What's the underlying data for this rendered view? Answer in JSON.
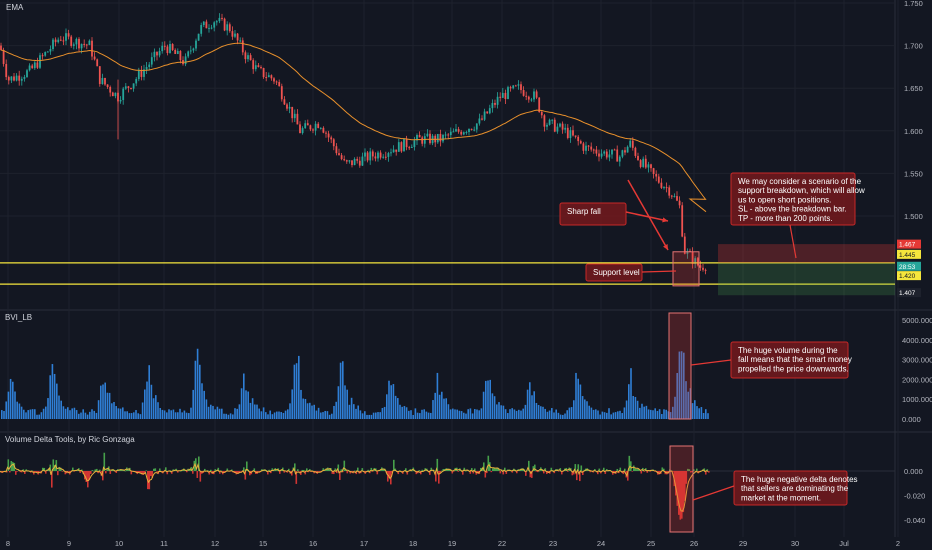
{
  "panels": {
    "price_title": "EMA",
    "volume_title": "BVI_LB",
    "delta_title": "Volume Delta Tools, by Ric Gonzaga"
  },
  "chart_data": [
    {
      "type": "candlestick",
      "title": "EMA",
      "y_ticks": [
        "1.750",
        "1.700",
        "1.650",
        "1.600",
        "1.550",
        "1.500"
      ],
      "ylim": [
        1.4,
        1.75
      ],
      "grid": true,
      "ema_line_color": "#e8902c",
      "up_color": "#26a69a",
      "down_color": "#ef5350",
      "support_levels": [
        1.445,
        1.42
      ],
      "support_color": "#f5e63c",
      "price_tags": [
        {
          "text": "1.467",
          "color": "#e53935"
        },
        {
          "text": "1.445",
          "color": "#f5e63c"
        },
        {
          "text": "28:53",
          "color": "#26a69a"
        },
        {
          "text": "1.420",
          "color": "#f5e63c"
        },
        {
          "text": "1.407",
          "color": "#1e222d"
        }
      ],
      "annotations": [
        "Sharp fall",
        "Support level",
        "We may consider a scenario of the",
        "support breakdown, which will allow",
        "us to open short positions.",
        "SL - above the breakdown bar.",
        "TP - more than 200 points."
      ]
    },
    {
      "type": "bar",
      "title": "BVI_LB",
      "y_ticks": [
        "5000.000",
        "4000.000",
        "3000.000",
        "2000.000",
        "1000.000",
        "0.000"
      ],
      "ylim": [
        0,
        5500
      ],
      "bar_color": "#2f7fd6",
      "annotations": [
        "The huge volume during the",
        "fall means that the smart money",
        "propelled the price downwards."
      ]
    },
    {
      "type": "area",
      "title": "Volume Delta Tools, by Ric Gonzaga",
      "y_ticks": [
        "0.000",
        "-0.020",
        "-0.040"
      ],
      "ylim": [
        -0.045,
        0.02
      ],
      "positive_color": "#4caf50",
      "negative_color": "#e53935",
      "signal_color": "#e8b13c",
      "annotations": [
        "The huge negative delta denotes",
        "that sellers are dominating the",
        "market at the moment."
      ]
    }
  ],
  "x_axis": {
    "labels": [
      "8",
      "9",
      "10",
      "11",
      "12",
      "15",
      "16",
      "17",
      "18",
      "19",
      "22",
      "23",
      "24",
      "25",
      "26",
      "29",
      "30",
      "Jul",
      "2"
    ]
  }
}
